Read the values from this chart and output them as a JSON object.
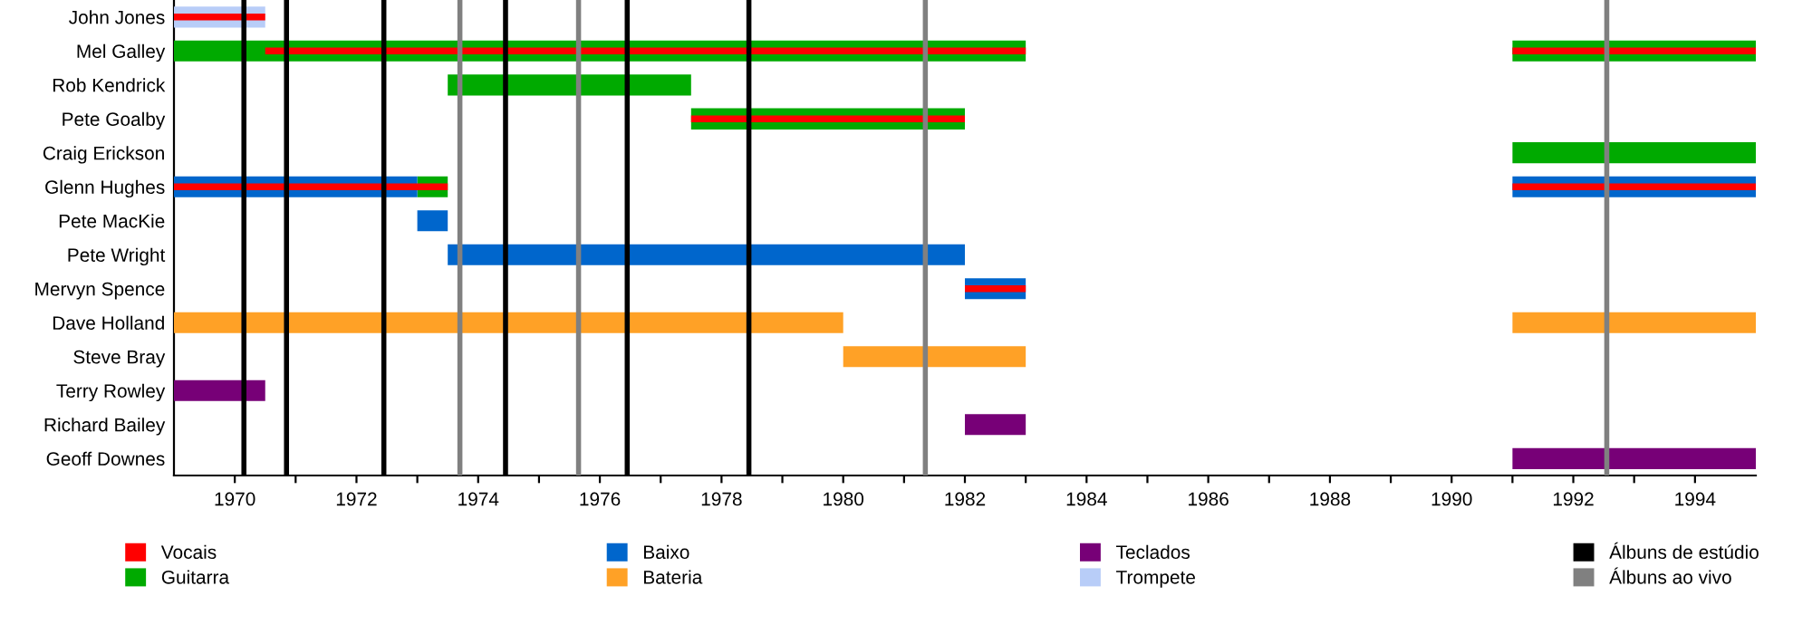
{
  "chart_data": {
    "type": "bar",
    "orientation": "horizontal",
    "legend": "bottom",
    "grid": false,
    "categories": [
      "John Jones",
      "Mel Galley",
      "Rob Kendrick",
      "Pete Goalby",
      "Craig Erickson",
      "Glenn Hughes",
      "Pete MacKie",
      "Pete Wright",
      "Mervyn Spence",
      "Dave Holland",
      "Steve Bray",
      "Terry Rowley",
      "Richard Bailey",
      "Geoff Downes"
    ],
    "xlim": [
      1969,
      1995
    ],
    "xticks": [
      1970,
      {
        "value": 1971,
        "label": null
      },
      1972,
      {
        "value": 1973,
        "label": null
      },
      1974,
      {
        "value": 1975,
        "label": null
      },
      1976,
      {
        "value": 1977,
        "label": null
      },
      1978,
      {
        "value": 1979,
        "label": null
      },
      1980,
      {
        "value": 1981,
        "label": null
      },
      1982,
      {
        "value": 1983,
        "label": null
      },
      1984,
      {
        "value": 1985,
        "label": null
      },
      1986,
      {
        "value": 1987,
        "label": null
      },
      1988,
      {
        "value": 1989,
        "label": null
      },
      1990,
      {
        "value": 1991,
        "label": null
      },
      1992,
      {
        "value": 1993,
        "label": null
      },
      1994
    ],
    "series": [
      {
        "name": "Vocais",
        "color": "#ff0000",
        "base": [
          1969,
          1970.5,
          null,
          1977.5,
          null,
          1969,
          null,
          null,
          1982,
          null,
          null,
          null,
          null,
          null
        ],
        "values": [
          1.5,
          12.5,
          null,
          4.5,
          null,
          4.5,
          null,
          null,
          1,
          null,
          null,
          null,
          null,
          null
        ]
      },
      {
        "name": "Guitarra",
        "color": "#00aa00",
        "base": [
          null,
          1969,
          1973.5,
          1977.5,
          null,
          1973,
          null,
          null,
          null,
          null,
          null,
          null,
          null,
          null
        ],
        "values": [
          null,
          14,
          4,
          4.5,
          null,
          0.5,
          null,
          null,
          null,
          null,
          null,
          null,
          null,
          null
        ]
      },
      {
        "color": "#ff0000",
        "base": [
          null,
          1991,
          null,
          null,
          null,
          1991,
          null,
          null,
          null,
          null,
          null,
          null,
          null,
          null
        ],
        "values": [
          null,
          4,
          null,
          null,
          null,
          4,
          null,
          null,
          null,
          null,
          null,
          null,
          null,
          null
        ]
      },
      {
        "color": "#00aa00",
        "base": [
          null,
          1991,
          null,
          null,
          1991,
          null,
          null,
          null,
          null,
          null,
          null,
          null,
          null,
          null
        ],
        "values": [
          null,
          4,
          null,
          null,
          4,
          null,
          null,
          null,
          null,
          null,
          null,
          null,
          null,
          null
        ]
      },
      {
        "name": "Baixo",
        "color": "#0066cc",
        "base": [
          null,
          null,
          null,
          null,
          null,
          1969,
          1973,
          1973.5,
          1982,
          null,
          null,
          null,
          null,
          null
        ],
        "values": [
          null,
          null,
          null,
          null,
          null,
          4,
          0.5,
          8.5,
          1,
          null,
          null,
          null,
          null,
          null
        ]
      },
      {
        "color": "#0066cc",
        "base": [
          null,
          null,
          null,
          null,
          null,
          1991,
          null,
          null,
          null,
          null,
          null,
          null,
          null,
          null
        ],
        "values": [
          null,
          null,
          null,
          null,
          null,
          4,
          null,
          null,
          null,
          null,
          null,
          null,
          null,
          null
        ]
      },
      {
        "name": "Bateria",
        "color": "#ffa126",
        "base": [
          null,
          null,
          null,
          null,
          null,
          null,
          null,
          null,
          null,
          1969,
          1980,
          null,
          null,
          null
        ],
        "values": [
          null,
          null,
          null,
          null,
          null,
          null,
          null,
          null,
          null,
          11,
          3,
          null,
          null,
          null
        ]
      },
      {
        "color": "#ffa126",
        "base": [
          null,
          null,
          null,
          null,
          null,
          null,
          null,
          null,
          null,
          1991,
          null,
          null,
          null,
          null
        ],
        "values": [
          null,
          null,
          null,
          null,
          null,
          null,
          null,
          null,
          null,
          4,
          null,
          null,
          null,
          null
        ]
      },
      {
        "name": "Teclados",
        "color": "#770077",
        "base": [
          null,
          null,
          null,
          null,
          null,
          null,
          null,
          null,
          null,
          null,
          null,
          1969,
          1982,
          1991
        ],
        "values": [
          null,
          null,
          null,
          null,
          null,
          null,
          null,
          null,
          null,
          null,
          null,
          1.5,
          1,
          4
        ]
      },
      {
        "name": "Trompete",
        "color": "#b8cdf8",
        "base": [
          1969,
          null,
          null,
          null,
          null,
          null,
          null,
          null,
          null,
          null,
          null,
          null,
          null,
          null
        ],
        "values": [
          1.5,
          null,
          null,
          null,
          null,
          null,
          null,
          null,
          null,
          null,
          null,
          null,
          null,
          null
        ]
      }
    ],
    "ref_lines": [
      {
        "axis": "x",
        "value": 1970.15,
        "label": "Álbuns de estúdio",
        "color": "#000000"
      },
      {
        "axis": "x",
        "value": 1970.85,
        "color": "#000000"
      },
      {
        "axis": "x",
        "value": 1972.45,
        "color": "#000000"
      },
      {
        "axis": "x",
        "value": 1974.45,
        "color": "#000000"
      },
      {
        "axis": "x",
        "value": 1976.45,
        "color": "#000000"
      },
      {
        "axis": "x",
        "value": 1978.45,
        "color": "#000000"
      },
      {
        "axis": "x",
        "value": 1973.7,
        "label": "Álbuns ao vivo",
        "color": "#808080"
      },
      {
        "axis": "x",
        "value": 1975.65,
        "color": "#808080"
      },
      {
        "axis": "x",
        "value": 1981.35,
        "color": "#808080"
      },
      {
        "axis": "x",
        "value": 1992.55,
        "color": "#808080"
      }
    ]
  }
}
